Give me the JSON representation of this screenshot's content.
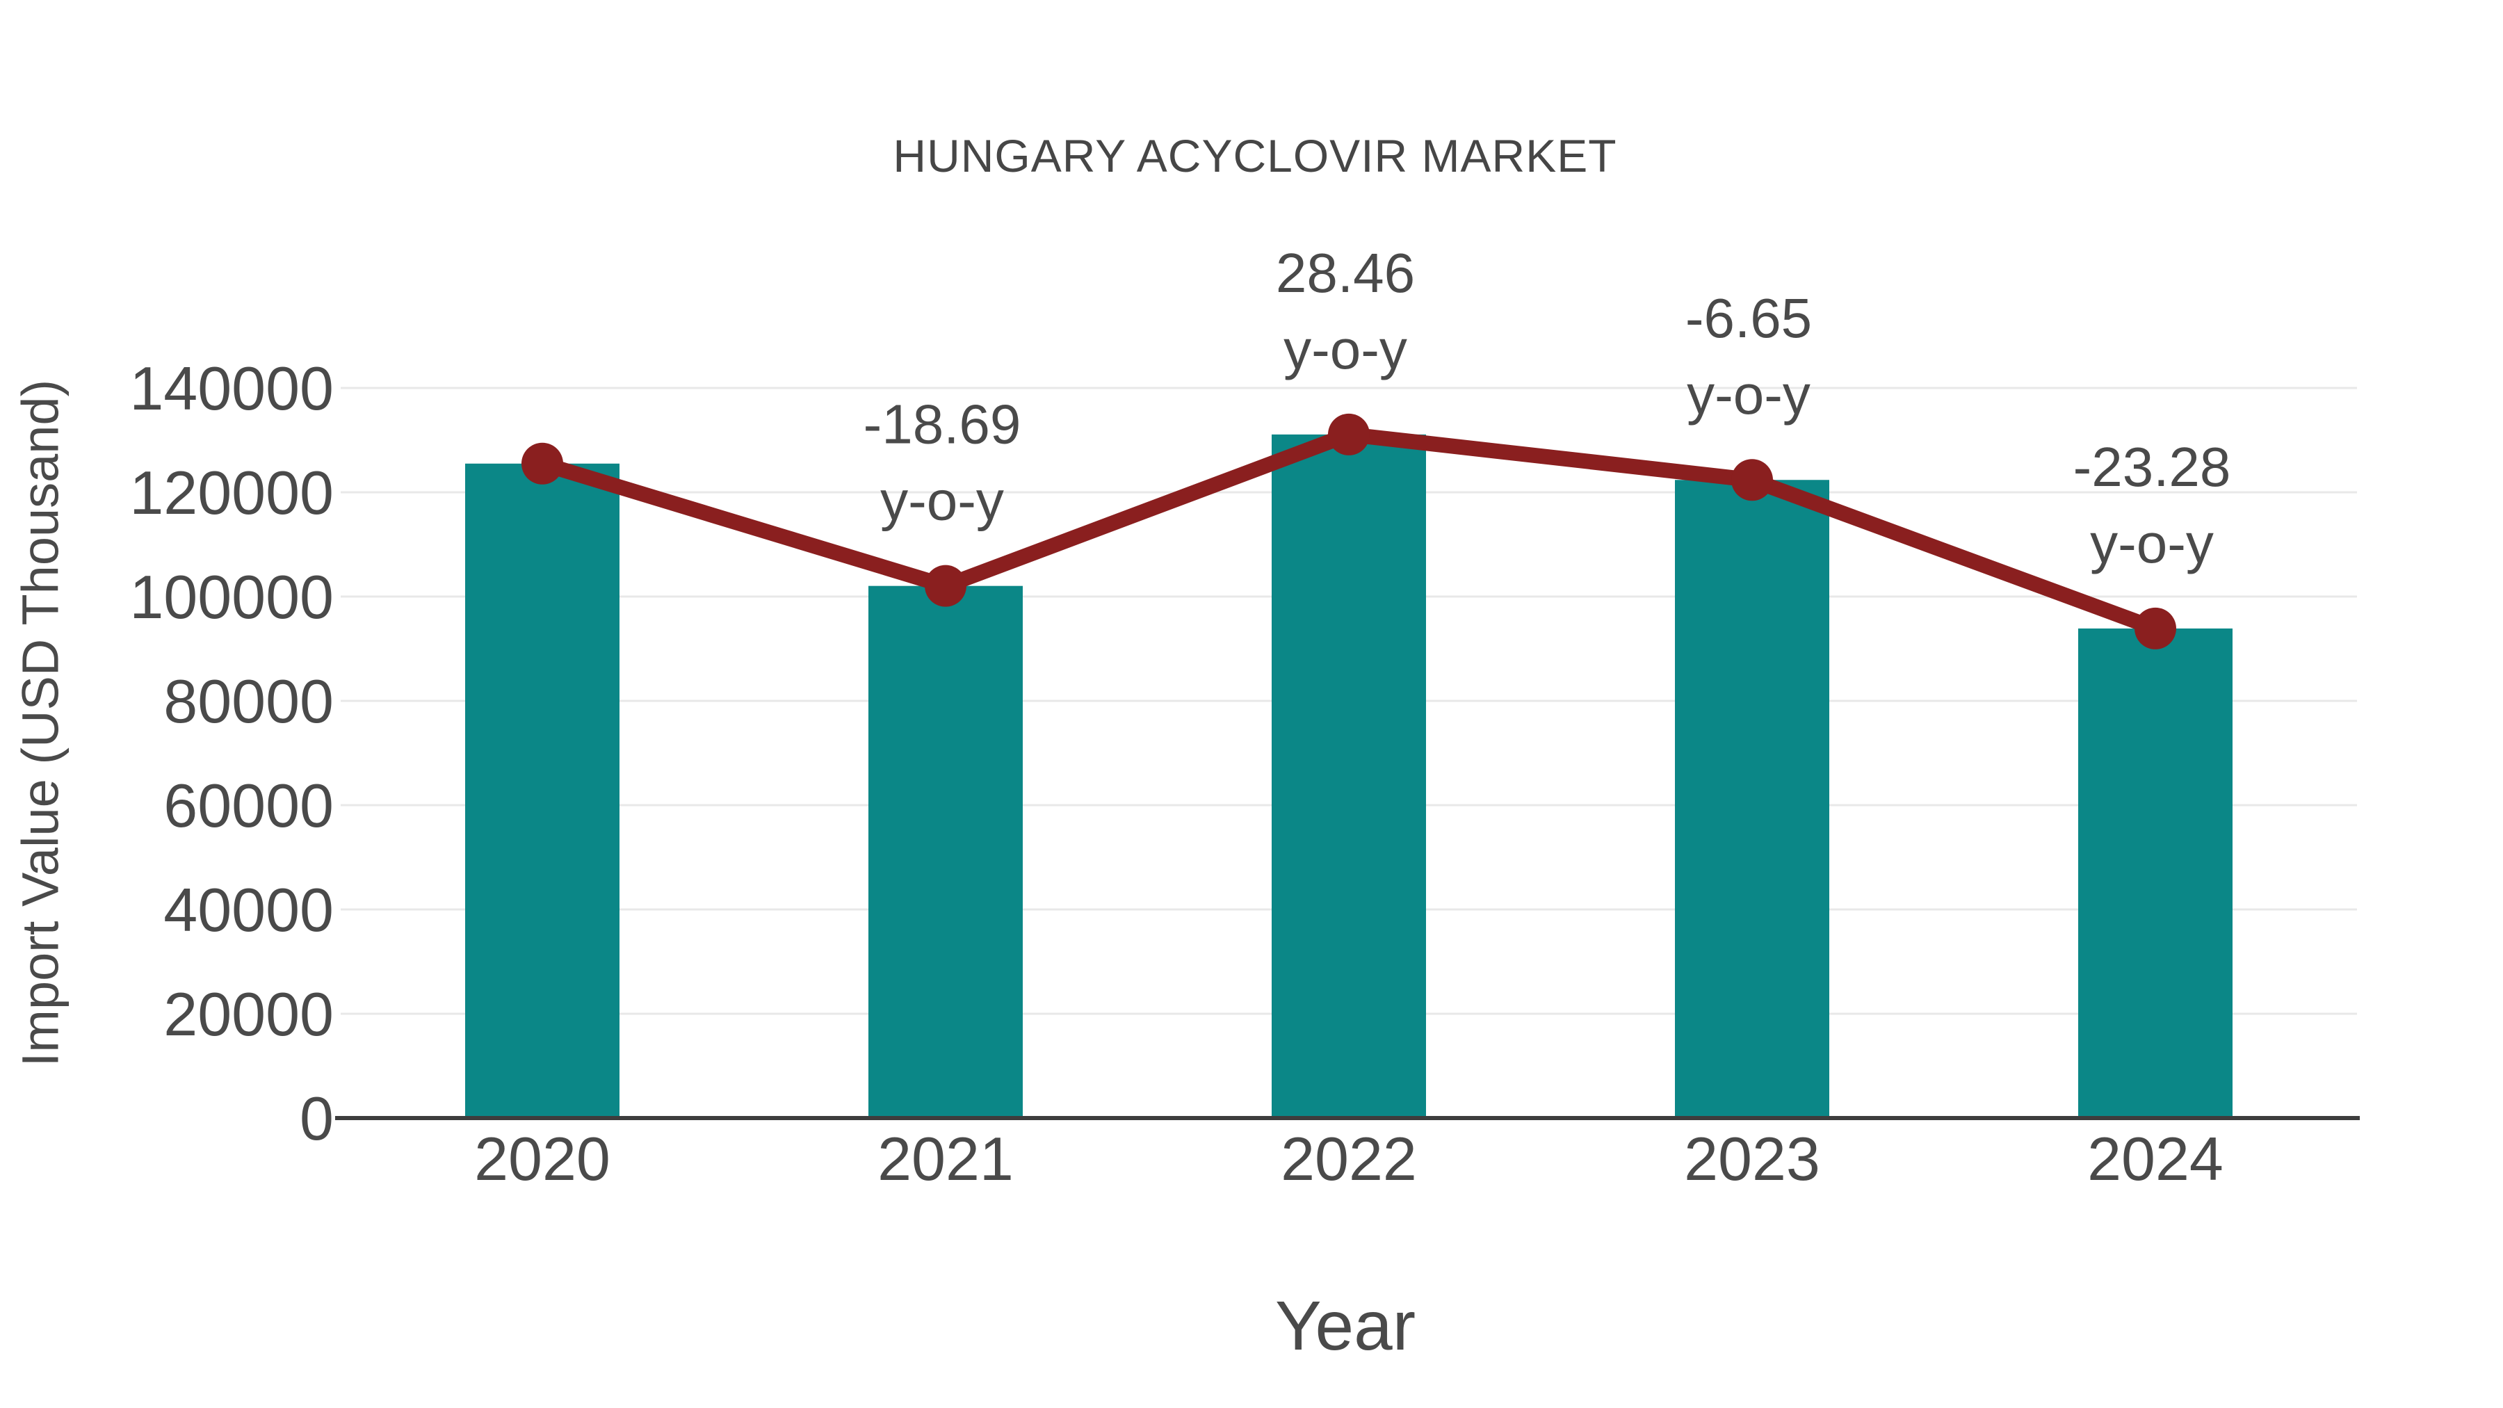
{
  "chart_data": {
    "type": "bar",
    "title": "HUNGARY ACYCLOVIR MARKET",
    "xlabel": "Year",
    "ylabel": "Import Value (USD Thousand)",
    "categories": [
      "2020",
      "2021",
      "2022",
      "2023",
      "2024"
    ],
    "series": [
      {
        "name": "Import Value (USD Thousand)",
        "type": "bar",
        "values": [
          125500,
          102043,
          131084,
          122367,
          93881
        ]
      },
      {
        "name": "y-o-y trend line",
        "type": "line",
        "values": [
          125500,
          102043,
          131084,
          122367,
          93881
        ]
      }
    ],
    "values": [
      125500,
      102043,
      131084,
      122367,
      93881
    ],
    "yoy_percent": [
      null,
      -18.69,
      28.46,
      -6.65,
      -23.28
    ],
    "annotations": [
      {
        "category": "2021",
        "line1": "-18.69",
        "line2": "y-o-y"
      },
      {
        "category": "2022",
        "line1": "28.46",
        "line2": "y-o-y"
      },
      {
        "category": "2023",
        "line1": "-6.65",
        "line2": "y-o-y"
      },
      {
        "category": "2024",
        "line1": "-23.28",
        "line2": "y-o-y"
      }
    ],
    "y_ticks": [
      0,
      20000,
      40000,
      60000,
      80000,
      100000,
      120000,
      140000
    ],
    "ylim": [
      0,
      160000
    ],
    "grid": true,
    "legend_position": "none"
  },
  "colors": {
    "bar": "#0b8787",
    "line": "#8a1f1f",
    "marker": "#8a1f1f",
    "grid": "#e8e8e8",
    "axis": "#3d3d3d",
    "text": "#4a4a4a"
  }
}
